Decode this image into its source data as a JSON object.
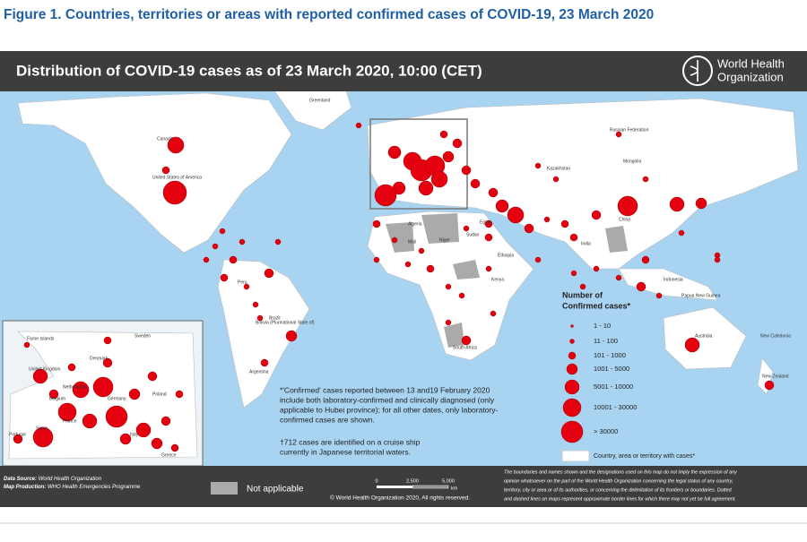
{
  "figure_title": "Figure 1. Countries, territories or areas with reported confirmed cases of COVID-19, 23 March 2020",
  "banner": {
    "title": "Distribution of COVID-19  cases as of 23 March 2020, 10:00 (CET)",
    "organization": [
      "World Health",
      "Organization"
    ]
  },
  "map_labels": [
    "Greenland",
    "Canada",
    "United States of America",
    "Russian Federation",
    "Kazakhstan",
    "Mongolia",
    "China",
    "India",
    "Brazil",
    "Argentina",
    "Australia",
    "New Zealand",
    "Egypt",
    "Algeria",
    "Mali",
    "Niger",
    "Sudan",
    "Ethiopia",
    "Kenya",
    "South Africa",
    "Indonesia",
    "Papua New Guinea",
    "New Caledonia",
    "Peru",
    "Bolivia (Plurinational State of)"
  ],
  "inset_labels": [
    "Faroe Islands",
    "Sweden",
    "United Kingdom",
    "Denmark",
    "Netherlands",
    "Belgium",
    "Germany",
    "Poland",
    "France",
    "Italy",
    "Spain",
    "Portugal",
    "Greece"
  ],
  "legend": {
    "title": [
      "Number of",
      "Confirmed cases*"
    ],
    "items": [
      "1 - 10",
      "11 - 100",
      "101 - 1000",
      "1001 - 5000",
      "5001 - 10000",
      "10001 - 30000",
      "> 30000"
    ],
    "area": "Country, area or territory with cases*"
  },
  "notes": [
    "*'Confirmed' cases reported between 13 and19 February 2020",
    "include both laboratory-confirmed and clinically diagnosed (only",
    "applicable to Hubei province); for all other dates, only laboratory-",
    "confirmed cases are shown."
  ],
  "cruise_note": [
    "†712 cases are identified on a cruise ship",
    "currently in Japanese territorial waters."
  ],
  "footer": {
    "source_label": "Data Source:",
    "source": "World Health Organization",
    "production_label": "Map Production:",
    "production": "WHO Health Emergencies Programme",
    "not_applicable": "Not applicable",
    "scale": [
      "0",
      "2,500",
      "5,000",
      "km"
    ],
    "copyright": "© World Health Organization 2020, All rights reserved.",
    "disclaimer": [
      "The boundaries and names shown and the designations used on this map do not imply the expression of any",
      "opinion whatsoever on the part of the World Health Organization concerning the legal status of any country,",
      "territory, city or area or of its authorities, or concerning the delimitation of its frontiers or boundaries. Dotted",
      "and dashed lines on maps represent approximate border lines for which there may not yet be full agreement."
    ]
  }
}
